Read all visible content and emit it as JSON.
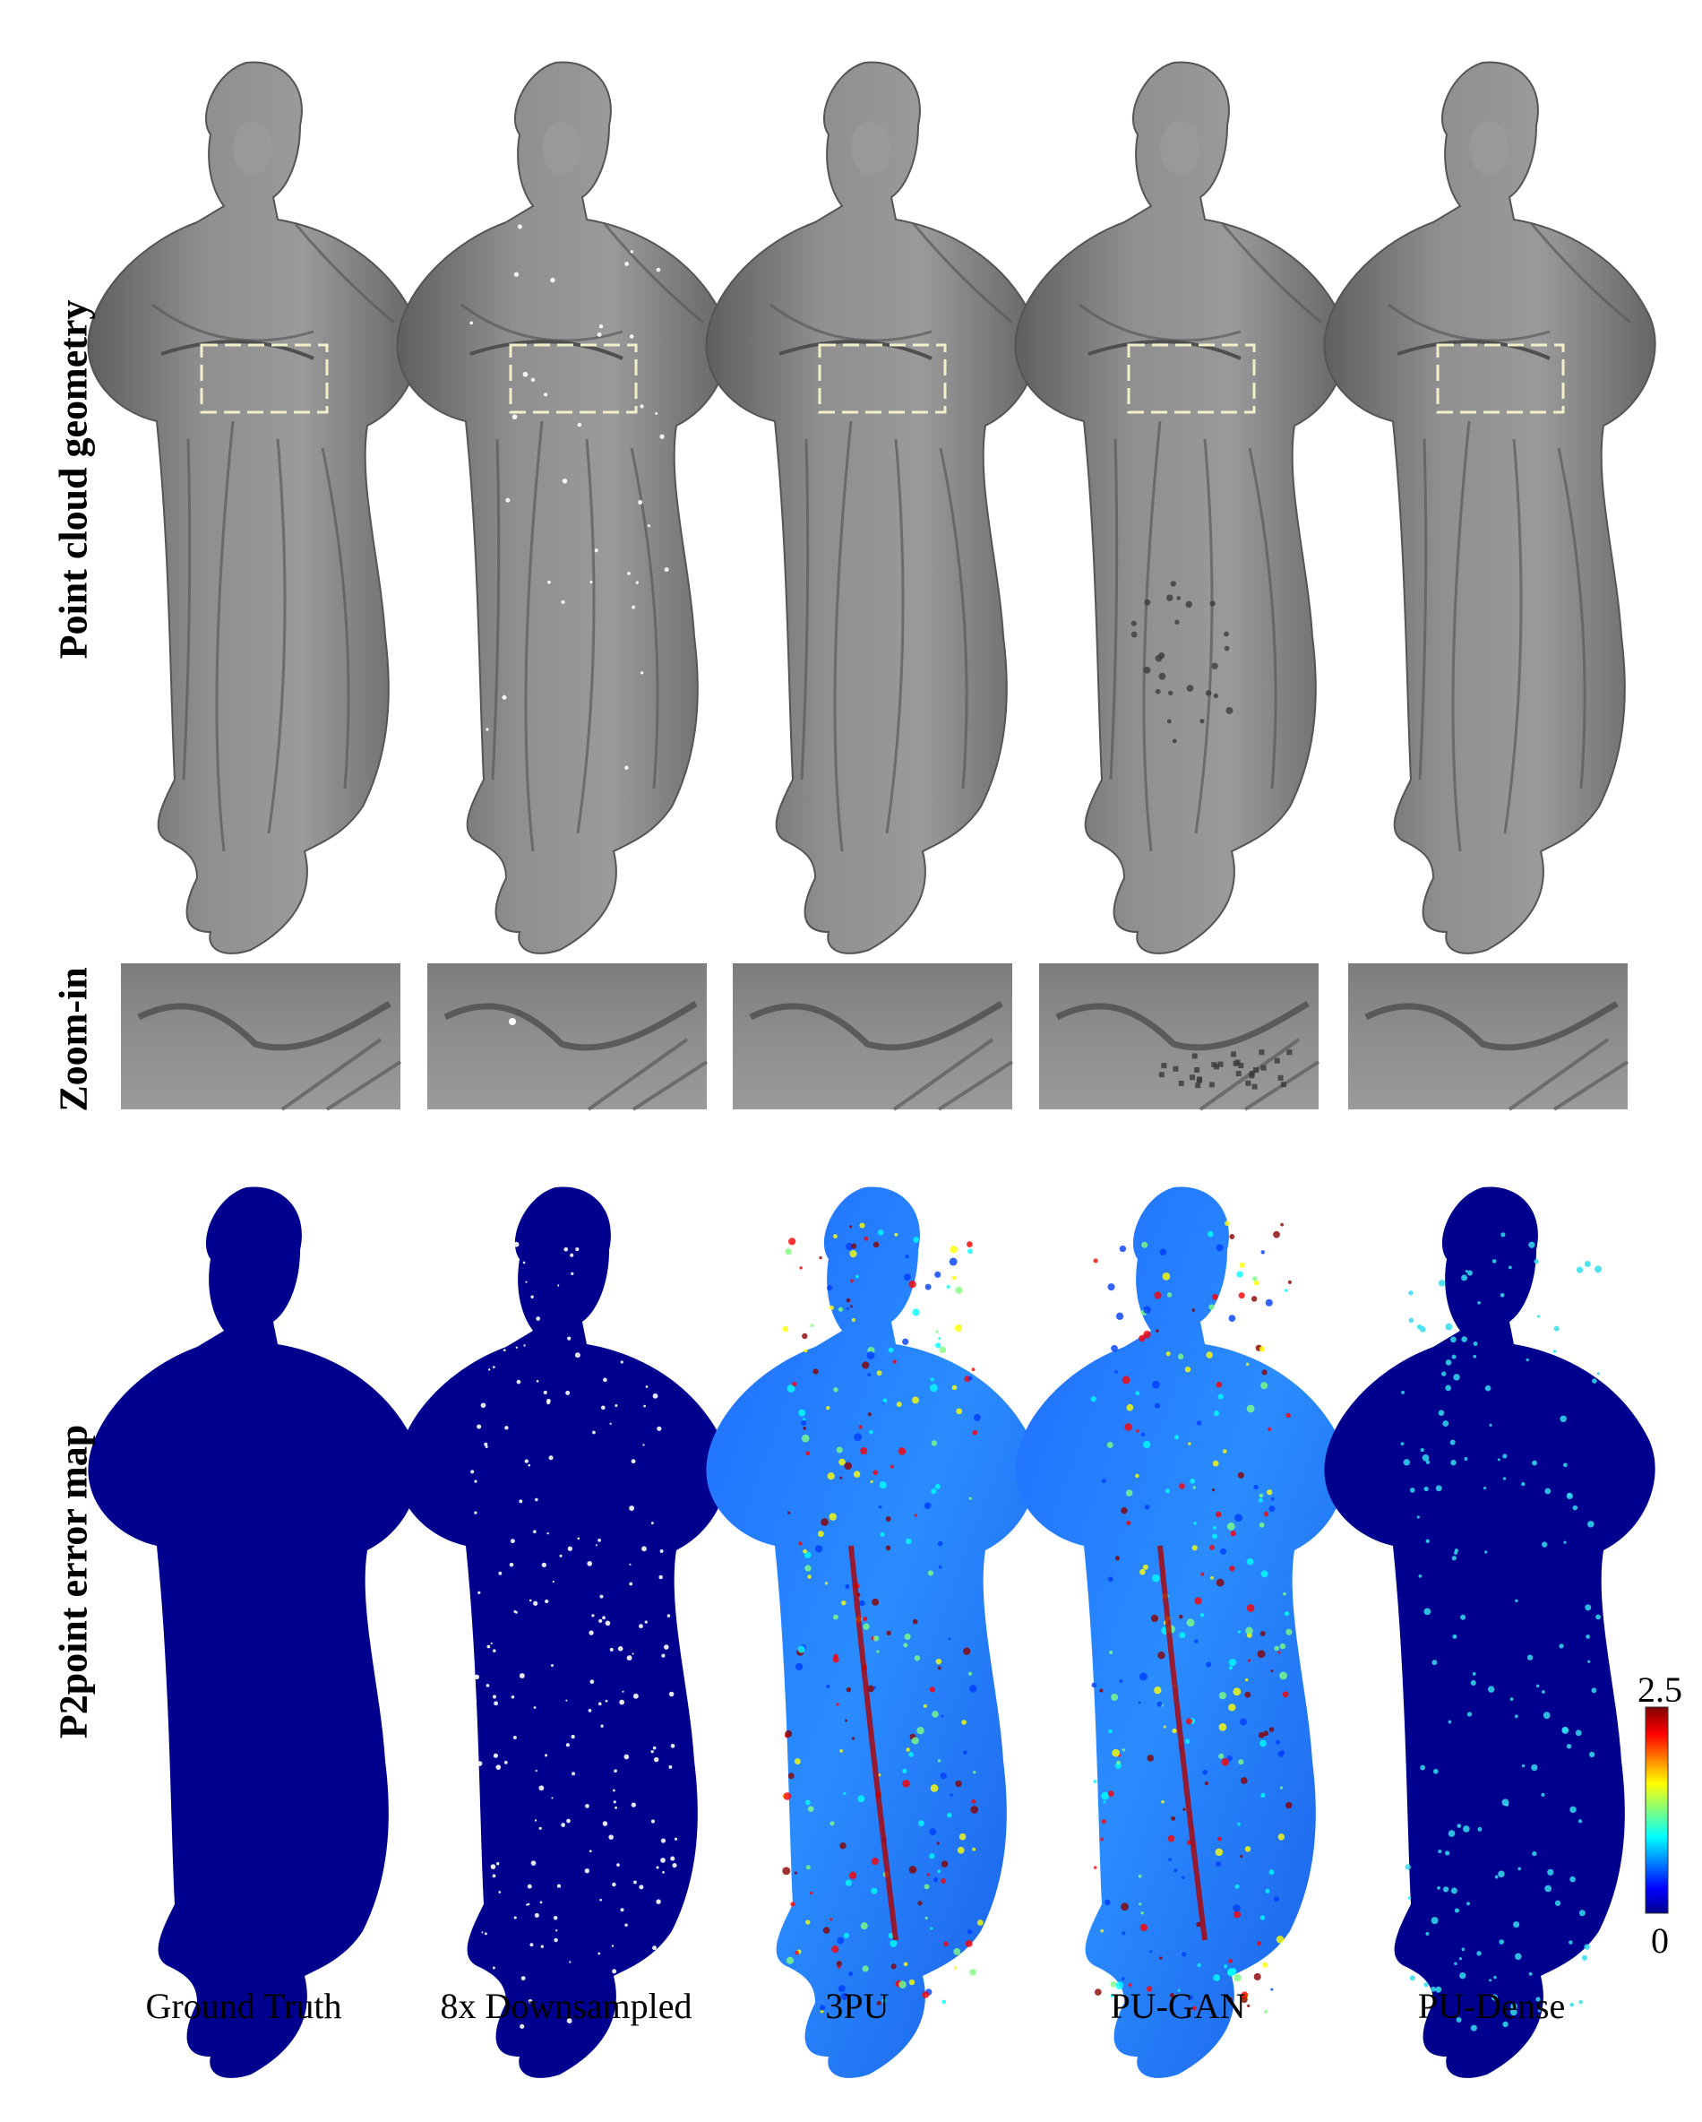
{
  "figure": {
    "row_labels": {
      "geometry": "Point cloud geometry",
      "zoom": "Zoom-in",
      "error": "P2point error map"
    },
    "columns": [
      {
        "label": "Ground Truth",
        "error_style": "uniform"
      },
      {
        "label": "8x Downsampled",
        "error_style": "holes"
      },
      {
        "label": "3PU",
        "error_style": "jet-high"
      },
      {
        "label": "PU-GAN",
        "error_style": "jet-high"
      },
      {
        "label": "PU-Dense",
        "error_style": "sparse"
      }
    ],
    "colorbar": {
      "max": "2.5",
      "min": "0"
    },
    "colors": {
      "statue_gray": "#8a8a8a",
      "error_dark_blue": "#00008f",
      "zoom_box": "#f2f0c8"
    }
  }
}
